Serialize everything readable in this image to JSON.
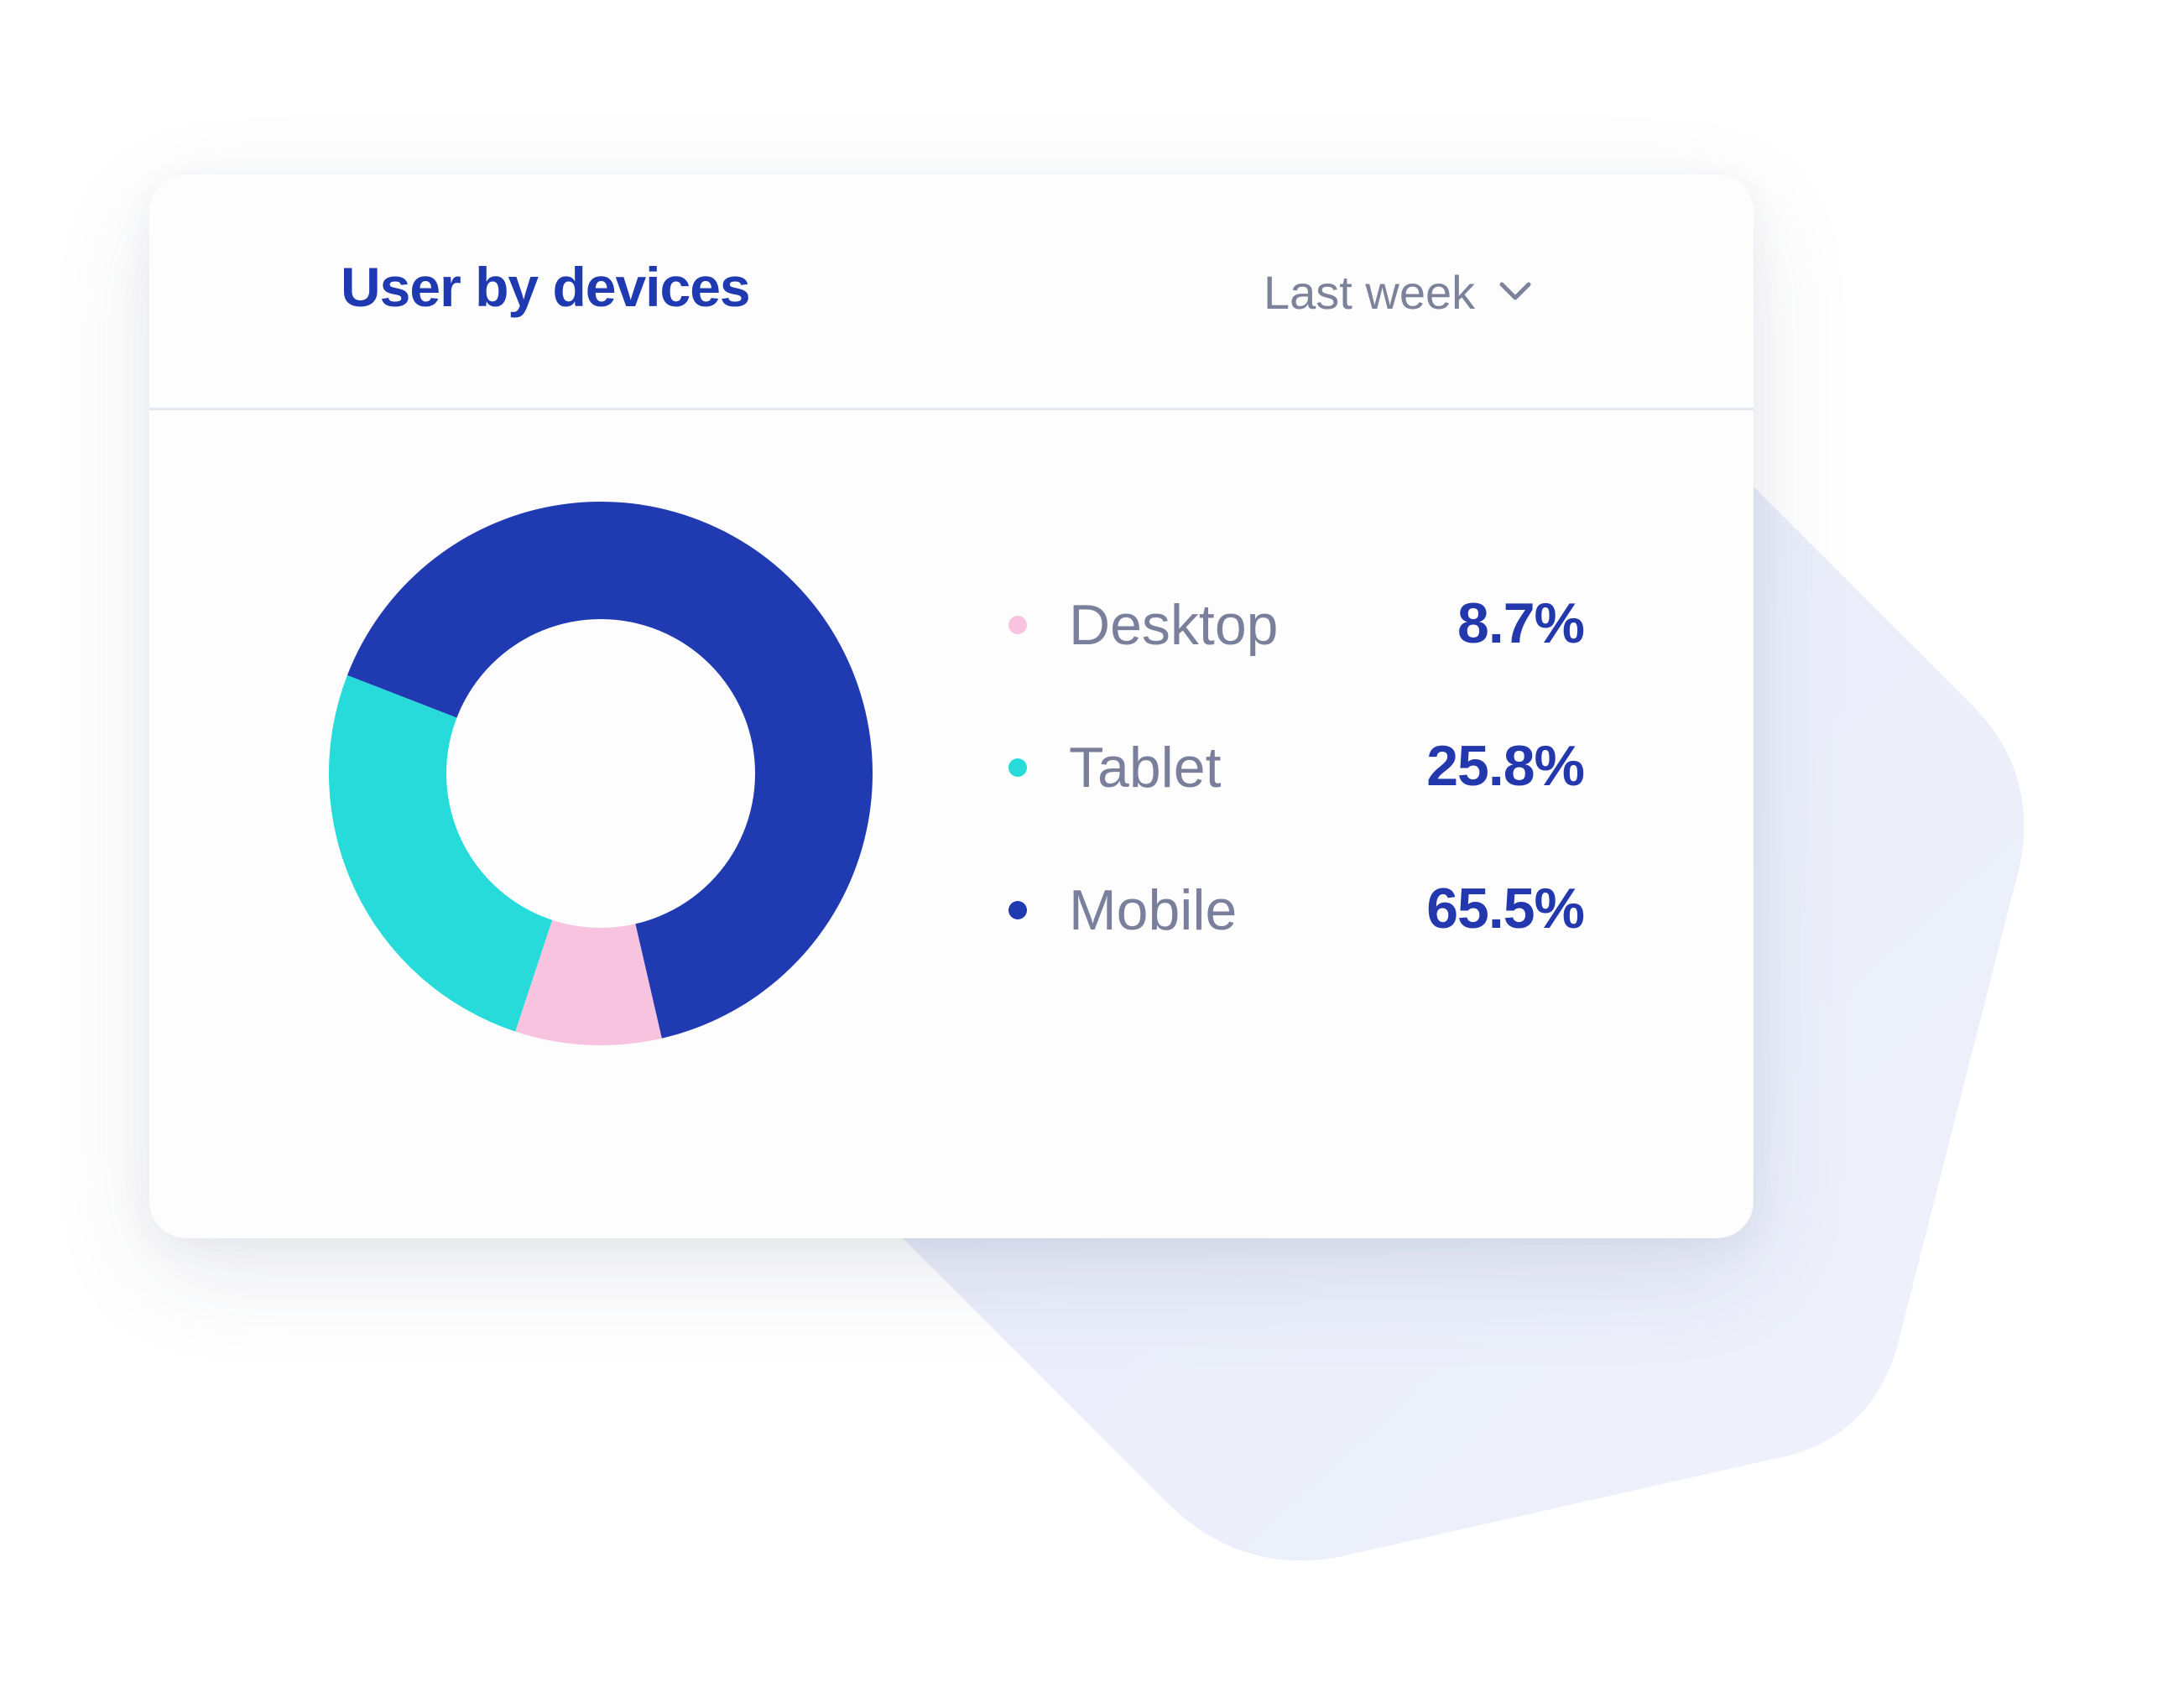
{
  "widget": {
    "title": "User by devices",
    "period": {
      "selected": "Last week",
      "icon": "chevron-down-icon"
    }
  },
  "colors": {
    "title": "#1f3ab0",
    "muted_text": "#7c829a",
    "value_text": "#2438ad",
    "divider": "#e3e6ef",
    "backdrop": "#eceefb"
  },
  "chart_data": {
    "type": "pie",
    "donut": true,
    "categories": [
      "Desktop",
      "Tablet",
      "Mobile"
    ],
    "values": [
      8.7,
      25.8,
      65.5
    ],
    "value_labels": [
      "8.7%",
      "25.8%",
      "65.5%"
    ],
    "colors": [
      "#f7c3df",
      "#27dbdb",
      "#203ab2"
    ],
    "legend": "right",
    "unit": "%"
  }
}
